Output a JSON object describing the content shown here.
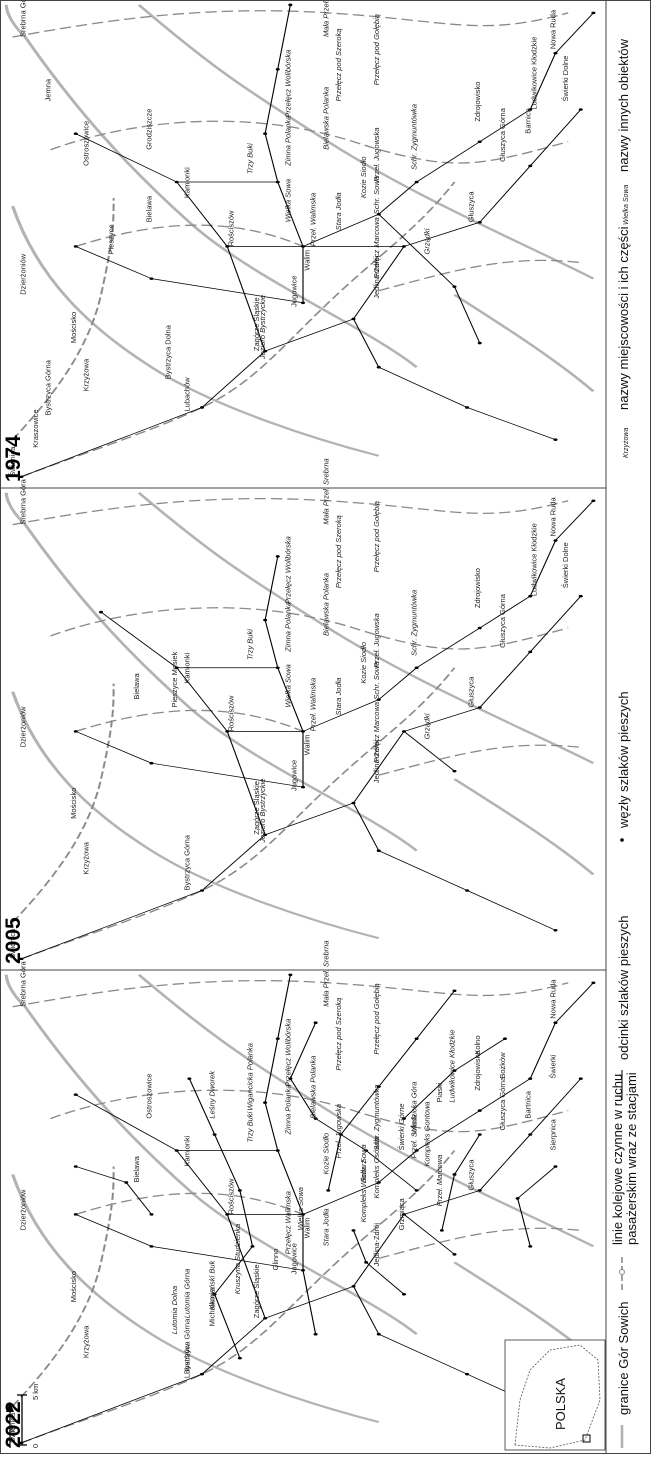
{
  "panels": [
    {
      "year": "1974",
      "labels_plain": [
        "Świdnica",
        "Kraszowice",
        "Bystrzyca Górna",
        "Krzyżowa",
        "Mościsko",
        "Dzierżoniów",
        "Pieszyce",
        "Bielawa",
        "Ostroszowice",
        "Grodziszcze",
        "Jemna",
        "Srebrna Góra",
        "Lubachów",
        "Bystrzyca Dolna",
        "Zagórze Śląskie",
        "Jugowice",
        "Walim",
        "Rościszów",
        "Kamionki",
        "Jedlina-Zdrój",
        "Głuszyca",
        "Głuszyca Górna",
        "Barnica",
        "Świerki Dolne",
        "Ludwikowice Kłodzkie",
        "Zdrojowisko",
        "Nowa Ruda"
      ],
      "labels_italic": [
        "Jezioro Bystrzyckie",
        "Przełęcz Marcowa",
        "Grządki",
        "Przeł. Walimska",
        "Stara Jodła",
        "Wielka Sowa",
        "Schr. Sowa",
        "Kozie Siodło",
        "Przeł. Jugowska",
        "Schr. Zygmuntówka",
        "Trzy Buki",
        "Zimna Polanka",
        "Bielawska Polanka",
        "Przełęcz Wolibórska",
        "Przełęcz pod Szeroką",
        "Przełęcz pod Gołębią",
        "Mała Przeł. Srebrna"
      ]
    },
    {
      "year": "2005",
      "labels_plain": [
        "Świdnica",
        "Bystrzyca Górna",
        "Krzyżowa",
        "Mościsko",
        "Dzierżoniów",
        "Bielawa",
        "Srebrna Góra",
        "Zagórze Śląskie",
        "Jugowice",
        "Walim",
        "Rościszów",
        "Pieszyce Mosiek",
        "Kamionki",
        "Jedlina-Zdrój",
        "Głuszyca",
        "Głuszyca Górna",
        "Świerki Dolne",
        "Ludwikowice Kłodzkie",
        "Zdrojowisko",
        "Nowa Ruda"
      ],
      "labels_italic": [
        "Jezioro Bystrzyckie",
        "Przełęcz Marcowa",
        "Grządki",
        "Przeł. Walimska",
        "Stara Jodła",
        "Wielka Sowa",
        "Schr. Sowa",
        "Kozie Siodło",
        "Przeł. Jugowska",
        "Schr. Zygmuntówka",
        "Trzy Buki",
        "Zimna Polanka",
        "Bielawska Polanka",
        "Przełęcz Wolibórska",
        "Przełęcz pod Szeroką",
        "Przełęcz pod Gołębią",
        "Mała Przeł. Srebrna"
      ]
    },
    {
      "year": "2022",
      "labels_plain": [
        "Świdnica",
        "Bystrzyca Górna",
        "Krzyżowa",
        "Mościsko",
        "Dzierżoniów",
        "Bielawa",
        "Ostroszowice",
        "Srebrna Góra",
        "Lubachów",
        "Kamionki",
        "Rościszów",
        "Zagórze Śląskie",
        "Jugowice",
        "Michałkowa",
        "Glinno",
        "Walim",
        "Jedlina-Zdrój",
        "Grzmiąca",
        "Głuszyca",
        "Głuszyca Górna",
        "Bartnica",
        "Świerki",
        "Kolno",
        "Zdrojowisko",
        "Nowa Ruda",
        "Bożków",
        "Piaski",
        "Sierpnica"
      ],
      "labels_italic": [
        "Lutomia Dolna",
        "Lutomia Górna",
        "Kamieński Buk",
        "Kruszyna Studzienka",
        "Przełęcz Walimska",
        "Stara Jodła",
        "Wielka Sowa",
        "Kompleks Włodarz",
        "Kompleks Osówka",
        "Przeł. Marcowa",
        "Kozie Siodło",
        "Schr. Sowa",
        "Przeł. Jugowska",
        "Schr. Zygmuntówka",
        "Trzy Buki",
        "Zimna Polanka",
        "Bielawska Polanka",
        "Wigancicka Polanka",
        "Przełęcz Wolibórska",
        "Przełęcz pod Szeroką",
        "Przełęcz pod Gołębią",
        "Mała Przeł. Srebrna",
        "Leśny Dworek",
        "Kompleks Gontowa",
        "Świerki Górne",
        "Włodzicka Góra",
        "Przeł. Sokola",
        "Ludwikowice Kłodzkie"
      ]
    }
  ],
  "scale_bar": {
    "zero": "0",
    "five": "5 km"
  },
  "north": "N",
  "inset": {
    "country": "POLSKA"
  },
  "legend": {
    "boundary": "granice Gór Sowich",
    "rail": "linie kolejowe czynne w ruchu pasażerskim wraz ze stacjami",
    "trails": "odcinki szlaków pieszych",
    "nodes": "węzły szlaków pieszych",
    "places_sample": "Krzyżowa",
    "places": "nazwy miejscowości i ich części",
    "objects_sample": "Wielka Sowa",
    "objects": "nazwy innych obiektów"
  }
}
